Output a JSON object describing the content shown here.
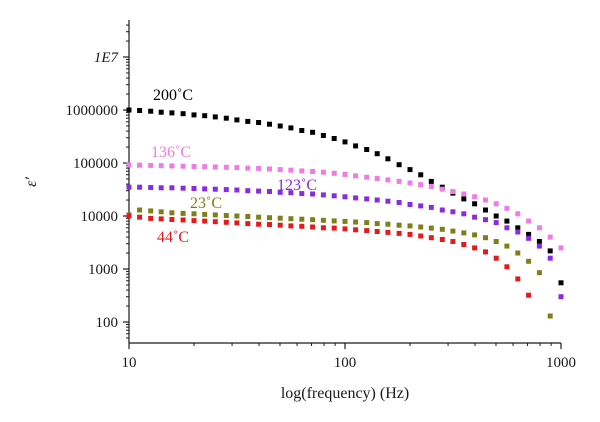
{
  "chart_data": {
    "type": "scatter",
    "xlabel": "log(frequency) (Hz)",
    "ylabel": "ε′",
    "x_scale": "log",
    "y_scale": "log",
    "xlim": [
      10,
      1000
    ],
    "ylim": [
      50,
      30000000
    ],
    "x_ticks": [
      {
        "value": 10,
        "label": "10"
      },
      {
        "value": 100,
        "label": "100"
      },
      {
        "value": 1000,
        "label": "1000"
      }
    ],
    "y_ticks": [
      {
        "value": 100,
        "label": "100"
      },
      {
        "value": 1000,
        "label": "1000"
      },
      {
        "value": 10000,
        "label": "10000"
      },
      {
        "value": 100000,
        "label": "100000"
      },
      {
        "value": 1000000,
        "label": "1000000"
      },
      {
        "value": 10000000,
        "label": "1E7"
      }
    ],
    "grid": false,
    "legend": "none",
    "series": [
      {
        "name": "200˚C",
        "color": "#000000",
        "x": [
          10,
          11.2,
          12.6,
          14.1,
          15.8,
          17.8,
          20,
          22.4,
          25.1,
          28.2,
          31.6,
          35.5,
          39.8,
          44.7,
          50.1,
          56.2,
          63.1,
          70.8,
          79.4,
          89.1,
          100,
          112,
          126,
          141,
          158,
          178,
          200,
          224,
          251,
          282,
          316,
          355,
          398,
          447,
          501,
          562,
          631,
          708,
          794,
          891,
          1000
        ],
        "y": [
          1000000,
          980000,
          950000,
          910000,
          880000,
          850000,
          810000,
          780000,
          740000,
          700000,
          650000,
          610000,
          580000,
          540000,
          500000,
          460000,
          410000,
          380000,
          330000,
          290000,
          250000,
          210000,
          180000,
          150000,
          120000,
          93000,
          75000,
          60000,
          45000,
          35000,
          27000,
          21000,
          17000,
          13000,
          10000,
          8000,
          6000,
          4500,
          3300,
          2200,
          550
        ]
      },
      {
        "name": "136˚C",
        "color": "#f07ae6",
        "x": [
          10,
          11.2,
          12.6,
          14.1,
          15.8,
          17.8,
          20,
          22.4,
          25.1,
          28.2,
          31.6,
          35.5,
          39.8,
          44.7,
          50.1,
          56.2,
          63.1,
          70.8,
          79.4,
          89.1,
          100,
          112,
          126,
          141,
          158,
          178,
          200,
          224,
          251,
          282,
          316,
          355,
          398,
          447,
          501,
          562,
          631,
          708,
          794,
          891,
          1000
        ],
        "y": [
          92000,
          91000,
          90000,
          89000,
          88000,
          87000,
          86000,
          85000,
          84000,
          83000,
          82000,
          80000,
          79000,
          77000,
          75000,
          73000,
          71000,
          69000,
          67000,
          64000,
          61000,
          57000,
          54000,
          51000,
          48000,
          45000,
          42000,
          39000,
          36000,
          32000,
          29000,
          26000,
          23000,
          20000,
          17000,
          14000,
          11000,
          8000,
          6000,
          4000,
          2500
        ]
      },
      {
        "name": "123˚C",
        "color": "#8a2be2",
        "x": [
          10,
          11.2,
          12.6,
          14.1,
          15.8,
          17.8,
          20,
          22.4,
          25.1,
          28.2,
          31.6,
          35.5,
          39.8,
          44.7,
          50.1,
          56.2,
          63.1,
          70.8,
          79.4,
          89.1,
          100,
          112,
          126,
          141,
          158,
          178,
          200,
          224,
          251,
          282,
          316,
          355,
          398,
          447,
          501,
          562,
          631,
          708,
          794,
          891,
          1000
        ],
        "y": [
          35000,
          35000,
          34500,
          34000,
          34000,
          33500,
          33000,
          32500,
          32000,
          31500,
          31000,
          30000,
          29500,
          29000,
          28000,
          27500,
          26500,
          26000,
          25000,
          24000,
          23000,
          22000,
          21000,
          20000,
          19000,
          18000,
          16500,
          15500,
          14500,
          13000,
          12000,
          11000,
          9500,
          8500,
          7500,
          6000,
          5000,
          3800,
          2700,
          1600,
          300
        ]
      },
      {
        "name": "23˚C",
        "color": "#7f7f1a",
        "x": [
          10,
          11.2,
          12.6,
          14.1,
          15.8,
          17.8,
          20,
          22.4,
          25.1,
          28.2,
          31.6,
          35.5,
          39.8,
          44.7,
          50.1,
          56.2,
          63.1,
          70.8,
          79.4,
          89.1,
          100,
          112,
          126,
          141,
          158,
          178,
          200,
          224,
          251,
          282,
          316,
          355,
          398,
          447,
          501,
          562,
          631,
          708,
          794,
          891
        ],
        "y": [
          10500,
          13000,
          12500,
          12000,
          11500,
          11200,
          11000,
          10700,
          10500,
          10200,
          10000,
          9800,
          9500,
          9300,
          9100,
          8900,
          8700,
          8500,
          8300,
          8100,
          7900,
          7700,
          7500,
          7200,
          7000,
          6700,
          6500,
          6200,
          5900,
          5600,
          5200,
          4800,
          4400,
          3900,
          3300,
          2700,
          2000,
          1400,
          850,
          130
        ]
      },
      {
        "name": "44˚C",
        "color": "#e51b1b",
        "x": [
          10,
          11.2,
          12.6,
          14.1,
          15.8,
          17.8,
          20,
          22.4,
          25.1,
          28.2,
          31.6,
          35.5,
          39.8,
          44.7,
          50.1,
          56.2,
          63.1,
          70.8,
          79.4,
          89.1,
          100,
          112,
          126,
          141,
          158,
          178,
          200,
          224,
          251,
          282,
          316,
          355,
          398,
          447,
          501,
          562,
          631,
          708
        ],
        "y": [
          10000,
          9500,
          9000,
          8800,
          8600,
          8400,
          8200,
          8000,
          7800,
          7600,
          7400,
          7200,
          7000,
          6900,
          6700,
          6500,
          6400,
          6200,
          6000,
          5900,
          5700,
          5500,
          5300,
          5100,
          4900,
          4700,
          4500,
          4200,
          3900,
          3600,
          3300,
          2900,
          2500,
          2100,
          1600,
          1100,
          650,
          320
        ]
      }
    ],
    "annotations": [
      {
        "text": "200˚C",
        "series": 0
      },
      {
        "text": "136˚C",
        "series": 1
      },
      {
        "text": "123˚C",
        "series": 2
      },
      {
        "text": "23˚C",
        "series": 3
      },
      {
        "text": "44˚C",
        "series": 4
      }
    ]
  }
}
